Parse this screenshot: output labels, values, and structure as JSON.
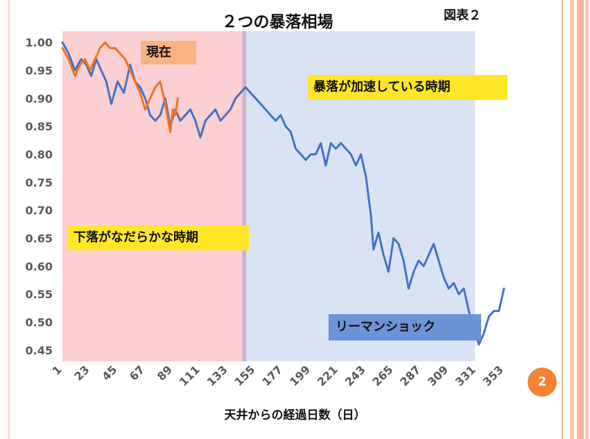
{
  "page": {
    "tag_label": "図表２",
    "page_number": "2"
  },
  "chart_data": {
    "type": "line",
    "title": "２つの暴落相場",
    "xlabel": "天井からの経過日数（日）",
    "ylabel": "",
    "xlim": [
      1,
      368
    ],
    "ylim": [
      0.43,
      1.02
    ],
    "x_ticks": [
      1,
      23,
      45,
      67,
      89,
      111,
      133,
      155,
      177,
      199,
      221,
      243,
      265,
      287,
      309,
      331,
      353
    ],
    "y_ticks": [
      1.0,
      0.95,
      0.9,
      0.85,
      0.8,
      0.75,
      0.7,
      0.65,
      0.6,
      0.55,
      0.5,
      0.45
    ],
    "y_tick_labels": [
      "1.00",
      "0.95",
      "0.90",
      "0.85",
      "0.80",
      "0.75",
      "0.70",
      "0.65",
      "0.60",
      "0.55",
      "0.50",
      "0.45"
    ],
    "grid": false,
    "regions": [
      {
        "label": "下落がなだらかな時期",
        "x_range": [
          1,
          146
        ],
        "color": "#fccfd2"
      },
      {
        "label": "暴落が加速している時期",
        "x_range": [
          146,
          330
        ],
        "color": "#dae3f3"
      }
    ],
    "series": [
      {
        "name": "",
        "color": "#4472c4",
        "points": [
          [
            1,
            1.0
          ],
          [
            6,
            0.98
          ],
          [
            11,
            0.95
          ],
          [
            16,
            0.97
          ],
          [
            20,
            0.96
          ],
          [
            24,
            0.94
          ],
          [
            28,
            0.97
          ],
          [
            32,
            0.95
          ],
          [
            36,
            0.93
          ],
          [
            40,
            0.89
          ],
          [
            45,
            0.93
          ],
          [
            50,
            0.91
          ],
          [
            55,
            0.96
          ],
          [
            59,
            0.93
          ],
          [
            63,
            0.92
          ],
          [
            67,
            0.9
          ],
          [
            71,
            0.87
          ],
          [
            75,
            0.86
          ],
          [
            79,
            0.87
          ],
          [
            83,
            0.9
          ],
          [
            87,
            0.85
          ],
          [
            91,
            0.88
          ],
          [
            95,
            0.86
          ],
          [
            99,
            0.87
          ],
          [
            103,
            0.88
          ],
          [
            107,
            0.86
          ],
          [
            111,
            0.83
          ],
          [
            115,
            0.86
          ],
          [
            119,
            0.87
          ],
          [
            123,
            0.88
          ],
          [
            127,
            0.86
          ],
          [
            131,
            0.87
          ],
          [
            135,
            0.88
          ],
          [
            139,
            0.9
          ],
          [
            143,
            0.91
          ],
          [
            147,
            0.92
          ],
          [
            151,
            0.91
          ],
          [
            155,
            0.9
          ],
          [
            159,
            0.89
          ],
          [
            163,
            0.88
          ],
          [
            167,
            0.87
          ],
          [
            171,
            0.86
          ],
          [
            175,
            0.87
          ],
          [
            179,
            0.85
          ],
          [
            183,
            0.84
          ],
          [
            187,
            0.81
          ],
          [
            191,
            0.8
          ],
          [
            195,
            0.79
          ],
          [
            199,
            0.8
          ],
          [
            203,
            0.8
          ],
          [
            207,
            0.82
          ],
          [
            211,
            0.78
          ],
          [
            215,
            0.82
          ],
          [
            219,
            0.81
          ],
          [
            223,
            0.82
          ],
          [
            227,
            0.81
          ],
          [
            231,
            0.8
          ],
          [
            235,
            0.78
          ],
          [
            239,
            0.8
          ],
          [
            243,
            0.76
          ],
          [
            247,
            0.69
          ],
          [
            249,
            0.63
          ],
          [
            253,
            0.66
          ],
          [
            257,
            0.62
          ],
          [
            261,
            0.59
          ],
          [
            265,
            0.65
          ],
          [
            269,
            0.64
          ],
          [
            273,
            0.61
          ],
          [
            277,
            0.56
          ],
          [
            281,
            0.59
          ],
          [
            285,
            0.61
          ],
          [
            289,
            0.6
          ],
          [
            293,
            0.62
          ],
          [
            297,
            0.64
          ],
          [
            301,
            0.61
          ],
          [
            305,
            0.58
          ],
          [
            309,
            0.56
          ],
          [
            313,
            0.57
          ],
          [
            317,
            0.55
          ],
          [
            321,
            0.56
          ],
          [
            325,
            0.52
          ],
          [
            329,
            0.49
          ],
          [
            333,
            0.46
          ],
          [
            337,
            0.48
          ],
          [
            341,
            0.51
          ],
          [
            345,
            0.52
          ],
          [
            349,
            0.52
          ],
          [
            353,
            0.56
          ]
        ]
      },
      {
        "name": "",
        "color": "#f4711f",
        "points": [
          [
            1,
            0.99
          ],
          [
            6,
            0.97
          ],
          [
            11,
            0.94
          ],
          [
            15,
            0.96
          ],
          [
            19,
            0.97
          ],
          [
            23,
            0.95
          ],
          [
            27,
            0.97
          ],
          [
            31,
            0.99
          ],
          [
            35,
            1.0
          ],
          [
            39,
            0.99
          ],
          [
            43,
            0.99
          ],
          [
            47,
            0.98
          ],
          [
            51,
            0.97
          ],
          [
            55,
            0.95
          ],
          [
            59,
            0.93
          ],
          [
            63,
            0.91
          ],
          [
            67,
            0.88
          ],
          [
            71,
            0.9
          ],
          [
            75,
            0.92
          ],
          [
            79,
            0.93
          ],
          [
            83,
            0.89
          ],
          [
            87,
            0.84
          ],
          [
            89,
            0.88
          ],
          [
            91,
            0.87
          ],
          [
            93,
            0.9
          ]
        ]
      }
    ],
    "annotations": [
      {
        "text": "現在",
        "color": "#f9b282"
      },
      {
        "text": "暴落が加速している時期",
        "color": "#ffe629"
      },
      {
        "text": "下落がなだらかな時期",
        "color": "#ffe629"
      },
      {
        "text": "リーマンショック",
        "color": "#6c93d6"
      }
    ]
  }
}
